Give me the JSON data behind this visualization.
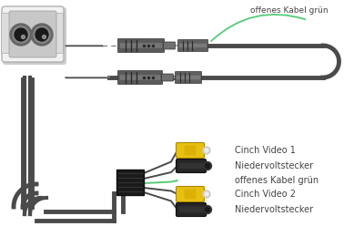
{
  "bg_color": "#ffffff",
  "labels": {
    "offenes_kabel_gruen_top": "offenes Kabel grün",
    "cinch_video_1": "Cinch Video 1",
    "niedervoltstecker_1": "Niedervoltstecker",
    "offenes_kabel_gruen_bottom": "offenes Kabel grün",
    "cinch_video_2": "Cinch Video 2",
    "niedervoltstecker_2": "Niedervoltstecker"
  },
  "label_color": "#444444",
  "label_fontsize": 7.0,
  "cable_color": "#4a4a4a",
  "cable_lw": 3.5,
  "green_color": "#55cc77",
  "yellow_color": "#e8c010",
  "connector_gray": "#888888",
  "connector_dark": "#222222",
  "connector_mid": "#555555",
  "cam_body_color": "#f2f2f2",
  "cam_border_color": "#b0b0b0"
}
